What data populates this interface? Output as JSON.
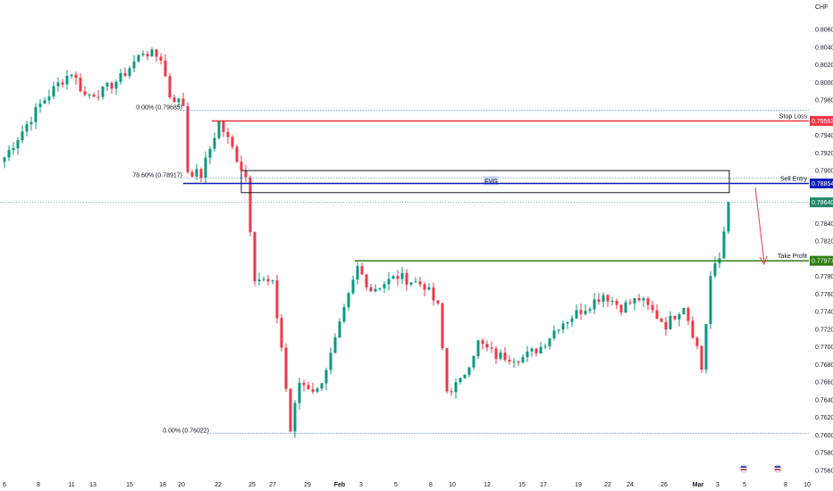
{
  "chart_data": {
    "type": "candlestick",
    "currency": "CHF",
    "y_ticks": [
      "0.80600",
      "0.80400",
      "0.80200",
      "0.80000",
      "0.79800",
      "0.79400",
      "0.79200",
      "0.79000",
      "0.78400",
      "0.78200",
      "0.77800",
      "0.77600",
      "0.77400",
      "0.77200",
      "0.77000",
      "0.76800",
      "0.76600",
      "0.76400",
      "0.76200",
      "0.76000",
      "0.75800",
      "0.75600"
    ],
    "ylim": [
      0.7554,
      0.8069
    ],
    "x_ticks": [
      "6",
      "8",
      "11",
      "13",
      "15",
      "18",
      "20",
      "22",
      "25",
      "27",
      "29",
      "Feb",
      "3",
      "5",
      "8",
      "10",
      "12",
      "15",
      "17",
      "19",
      "22",
      "24",
      "26",
      "Mar",
      "3",
      "5",
      "8",
      "10"
    ],
    "price_path": [
      [
        0,
        0.7915
      ],
      [
        4,
        0.7945
      ],
      [
        8,
        0.7975
      ],
      [
        12,
        0.7998
      ],
      [
        15,
        0.8012
      ],
      [
        18,
        0.7985
      ],
      [
        22,
        0.799
      ],
      [
        26,
        0.8005
      ],
      [
        31,
        0.8035
      ],
      [
        35,
        0.8028
      ],
      [
        37,
        0.7985
      ],
      [
        40,
        0.7975
      ],
      [
        41,
        0.79
      ],
      [
        44,
        0.7895
      ],
      [
        48,
        0.7955
      ],
      [
        51,
        0.7925
      ],
      [
        54,
        0.7893
      ],
      [
        55,
        0.7835
      ],
      [
        56,
        0.778
      ],
      [
        60,
        0.777
      ],
      [
        62,
        0.77
      ],
      [
        64,
        0.7605
      ],
      [
        66,
        0.766
      ],
      [
        70,
        0.765
      ],
      [
        73,
        0.769
      ],
      [
        76,
        0.774
      ],
      [
        79,
        0.779
      ],
      [
        82,
        0.7765
      ],
      [
        88,
        0.778
      ],
      [
        94,
        0.777
      ],
      [
        97,
        0.7745
      ],
      [
        99,
        0.765
      ],
      [
        102,
        0.766
      ],
      [
        106,
        0.7705
      ],
      [
        110,
        0.769
      ],
      [
        116,
        0.7688
      ],
      [
        120,
        0.77
      ],
      [
        124,
        0.7725
      ],
      [
        130,
        0.7745
      ],
      [
        134,
        0.776
      ],
      [
        138,
        0.7745
      ],
      [
        142,
        0.7755
      ],
      [
        148,
        0.7725
      ],
      [
        152,
        0.7748
      ],
      [
        155,
        0.77
      ],
      [
        156,
        0.7675
      ],
      [
        158,
        0.778
      ],
      [
        160,
        0.78
      ],
      [
        162,
        0.7864
      ]
    ],
    "levels": {
      "stop_loss": {
        "label": "Stop Loss",
        "price": "0.79563",
        "color": "#f23645"
      },
      "sell_entry": {
        "label": "Sell Entry",
        "price": "0.78854",
        "color": "#0c1fb5"
      },
      "take_profit": {
        "label": "Take Profit",
        "price": "0.77977",
        "color": "#2f7d12"
      },
      "current": {
        "price": "0.78640",
        "color": "#22886a"
      }
    },
    "fvg": {
      "label": "FVG",
      "top": 0.79,
      "bottom": 0.7875
    },
    "fib": [
      {
        "label": "0.00% (0.79685)",
        "price": 0.79685
      },
      {
        "label": "78.60% (0.78917)",
        "price": 0.78917
      },
      {
        "label": "0.00% (0.76022)",
        "price": 0.76022
      }
    ],
    "colors": {
      "up": "#089981",
      "down": "#f23645"
    }
  }
}
